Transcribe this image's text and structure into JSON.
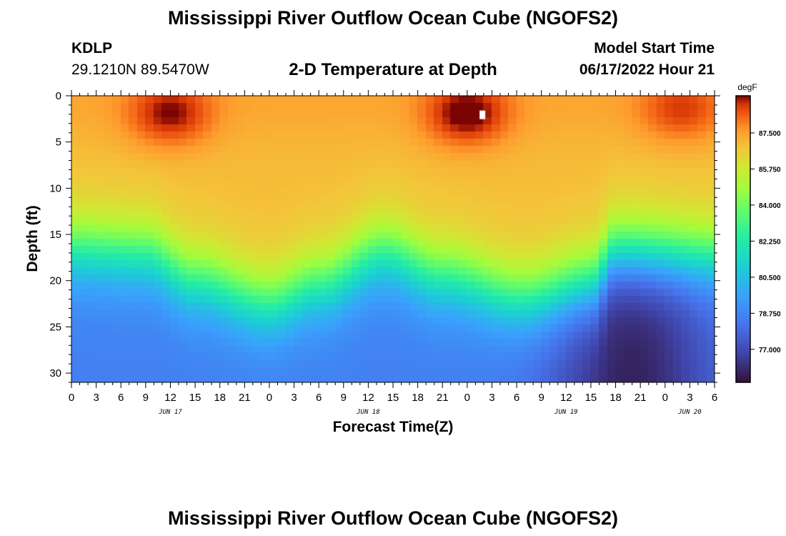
{
  "header": {
    "title": "Mississippi River Outflow Ocean Cube (NGOFS2)",
    "station": "KDLP",
    "coords": "29.1210N  89.5470W",
    "subtitle": "2-D Temperature at Depth",
    "start_label": "Model Start Time",
    "start_value": "06/17/2022 Hour 21"
  },
  "footer": {
    "title": "Mississippi River Outflow Ocean Cube (NGOFS2)"
  },
  "chart_data": {
    "type": "heatmap",
    "title": "2-D Temperature at Depth",
    "xlabel": "Forecast Time(Z)",
    "ylabel": "Depth (ft)",
    "x_tick_labels": [
      "0",
      "3",
      "6",
      "9",
      "12",
      "15",
      "18",
      "21",
      "0",
      "3",
      "6",
      "9",
      "12",
      "15",
      "18",
      "21",
      "0",
      "3",
      "6",
      "9",
      "12",
      "15",
      "18",
      "21",
      "0",
      "3",
      "6"
    ],
    "x_range_hours": [
      0,
      78
    ],
    "date_labels": [
      {
        "text": "JUN 17",
        "hour": 12
      },
      {
        "text": "JUN 18",
        "hour": 36
      },
      {
        "text": "JUN 19",
        "hour": 60
      },
      {
        "text": "JUN 20",
        "hour": 75
      }
    ],
    "y_ticks": [
      0,
      5,
      10,
      15,
      20,
      25,
      30
    ],
    "y_range_ft": [
      0,
      31
    ],
    "y_inverted": true,
    "colorbar": {
      "unit": "degF",
      "tick_labels": [
        "87.500",
        "85.750",
        "84.000",
        "82.250",
        "80.500",
        "78.750",
        "77.000"
      ],
      "tick_values": [
        87.5,
        85.75,
        84.0,
        82.25,
        80.5,
        78.75,
        77.0
      ],
      "range": [
        75.4,
        89.3
      ]
    },
    "field": {
      "description": "Temperature (degF) vs forecast hour and depth",
      "surface_temp": 87.0,
      "bottom_temp_max": 78.5,
      "bottom_temp_min": 75.8,
      "thermocline_depth_keypoints": [
        {
          "hour": 0,
          "depth_ft": 11.0
        },
        {
          "hour": 9,
          "depth_ft": 11.5
        },
        {
          "hour": 15,
          "depth_ft": 14.5
        },
        {
          "hour": 24,
          "depth_ft": 17.0
        },
        {
          "hour": 30,
          "depth_ft": 15.0
        },
        {
          "hour": 38,
          "depth_ft": 11.5
        },
        {
          "hour": 45,
          "depth_ft": 14.0
        },
        {
          "hour": 55,
          "depth_ft": 16.5
        },
        {
          "hour": 63,
          "depth_ft": 15.0
        },
        {
          "hour": 66,
          "depth_ft": 11.5
        },
        {
          "hour": 78,
          "depth_ft": 12.0
        }
      ],
      "warm_cores": [
        {
          "hour": 12,
          "depth_ft": 2.0,
          "temp": 89.0
        },
        {
          "hour": 48,
          "depth_ft": 2.0,
          "temp": 89.3
        },
        {
          "hour": 74,
          "depth_ft": 1.5,
          "temp": 88.5
        }
      ],
      "cold_bottom_hour": 68
    }
  }
}
